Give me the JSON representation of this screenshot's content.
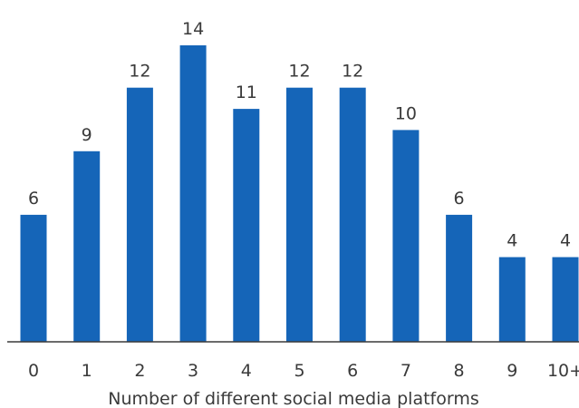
{
  "chart_data": {
    "type": "bar",
    "categories": [
      "0",
      "1",
      "2",
      "3",
      "4",
      "5",
      "6",
      "7",
      "8",
      "9",
      "10+"
    ],
    "values": [
      6,
      9,
      12,
      14,
      11,
      12,
      12,
      10,
      6,
      4,
      4
    ],
    "data_labels": [
      "6",
      "9",
      "12",
      "14",
      "11",
      "12",
      "12",
      "10",
      "6",
      "4",
      "4"
    ],
    "title": "",
    "xlabel": "Number of different social media platforms",
    "ylabel": "",
    "ylim": [
      0,
      14
    ],
    "grid": false,
    "legend": "none",
    "colors": {
      "bar": "#1565B8",
      "axis": "#3a3a3a",
      "text": "#3a3a3a"
    }
  }
}
